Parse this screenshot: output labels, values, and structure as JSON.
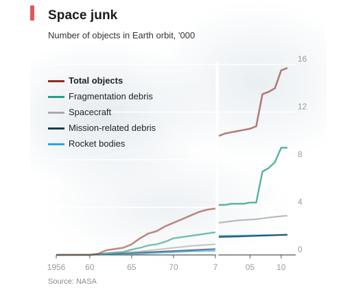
{
  "chart_data": {
    "type": "line",
    "title": "Space junk",
    "subtitle": "Number of objects in Earth orbit, '000",
    "source": "Source: NASA",
    "ylim": [
      0,
      16
    ],
    "y_ticks": [
      "0",
      "4",
      "8",
      "12",
      "16"
    ],
    "x_ticks": [
      "1956",
      "60",
      "65",
      "70",
      "7",
      "05",
      "10"
    ],
    "legend_placement": "upper-left",
    "axis_break": "between 1975 and 2000",
    "series": [
      {
        "name": "Total objects",
        "color": "#8b2a22",
        "bold": true,
        "points": [
          [
            1956,
            0
          ],
          [
            1957,
            0
          ],
          [
            1958,
            0
          ],
          [
            1959,
            0
          ],
          [
            1960,
            0
          ],
          [
            1961,
            0.1
          ],
          [
            1962,
            0.4
          ],
          [
            1963,
            0.5
          ],
          [
            1964,
            0.6
          ],
          [
            1965,
            0.9
          ],
          [
            1966,
            1.4
          ],
          [
            1967,
            1.8
          ],
          [
            1968,
            2.0
          ],
          [
            1969,
            2.4
          ],
          [
            1970,
            2.7
          ],
          [
            1971,
            3.0
          ],
          [
            1972,
            3.3
          ],
          [
            1973,
            3.6
          ],
          [
            1974,
            3.8
          ],
          [
            1975,
            3.9
          ],
          [
            2000,
            10.0
          ],
          [
            2001,
            10.2
          ],
          [
            2002,
            10.3
          ],
          [
            2003,
            10.4
          ],
          [
            2004,
            10.5
          ],
          [
            2005,
            10.6
          ],
          [
            2006,
            10.8
          ],
          [
            2007,
            13.5
          ],
          [
            2008,
            13.7
          ],
          [
            2009,
            14.0
          ],
          [
            2010,
            15.5
          ],
          [
            2011,
            15.7
          ]
        ]
      },
      {
        "name": "Fragmentation debris",
        "color": "#2a9d88",
        "bold": false,
        "points": [
          [
            1956,
            0
          ],
          [
            1960,
            0
          ],
          [
            1961,
            0.05
          ],
          [
            1962,
            0.15
          ],
          [
            1963,
            0.2
          ],
          [
            1964,
            0.25
          ],
          [
            1965,
            0.45
          ],
          [
            1966,
            0.6
          ],
          [
            1967,
            0.8
          ],
          [
            1968,
            0.9
          ],
          [
            1969,
            1.1
          ],
          [
            1970,
            1.4
          ],
          [
            1971,
            1.5
          ],
          [
            1972,
            1.6
          ],
          [
            1973,
            1.7
          ],
          [
            1974,
            1.8
          ],
          [
            1975,
            1.9
          ],
          [
            2000,
            4.2
          ],
          [
            2001,
            4.2
          ],
          [
            2002,
            4.3
          ],
          [
            2003,
            4.3
          ],
          [
            2004,
            4.3
          ],
          [
            2005,
            4.4
          ],
          [
            2006,
            4.4
          ],
          [
            2007,
            7.0
          ],
          [
            2008,
            7.3
          ],
          [
            2009,
            7.8
          ],
          [
            2010,
            9.0
          ],
          [
            2011,
            9.0
          ]
        ]
      },
      {
        "name": "Spacecraft",
        "color": "#aaaaaa",
        "bold": false,
        "points": [
          [
            1956,
            0
          ],
          [
            1960,
            0.02
          ],
          [
            1962,
            0.1
          ],
          [
            1964,
            0.2
          ],
          [
            1966,
            0.3
          ],
          [
            1968,
            0.45
          ],
          [
            1970,
            0.6
          ],
          [
            1972,
            0.75
          ],
          [
            1975,
            0.9
          ],
          [
            2000,
            2.7
          ],
          [
            2003,
            2.9
          ],
          [
            2006,
            3.0
          ],
          [
            2009,
            3.2
          ],
          [
            2011,
            3.3
          ]
        ]
      },
      {
        "name": "Mission-related debris",
        "color": "#123a52",
        "bold": false,
        "points": [
          [
            1956,
            0
          ],
          [
            1960,
            0.02
          ],
          [
            1963,
            0.1
          ],
          [
            1966,
            0.2
          ],
          [
            1969,
            0.3
          ],
          [
            1972,
            0.4
          ],
          [
            1975,
            0.5
          ],
          [
            2000,
            1.5
          ],
          [
            2003,
            1.55
          ],
          [
            2006,
            1.6
          ],
          [
            2009,
            1.65
          ],
          [
            2011,
            1.7
          ]
        ]
      },
      {
        "name": "Rocket bodies",
        "color": "#2ea3e0",
        "bold": false,
        "points": [
          [
            1956,
            0
          ],
          [
            1960,
            0.01
          ],
          [
            1963,
            0.05
          ],
          [
            1966,
            0.1
          ],
          [
            1969,
            0.2
          ],
          [
            1972,
            0.3
          ],
          [
            1975,
            0.35
          ],
          [
            2000,
            1.6
          ],
          [
            2003,
            1.62
          ],
          [
            2006,
            1.65
          ],
          [
            2009,
            1.68
          ],
          [
            2011,
            1.7
          ]
        ]
      }
    ]
  }
}
